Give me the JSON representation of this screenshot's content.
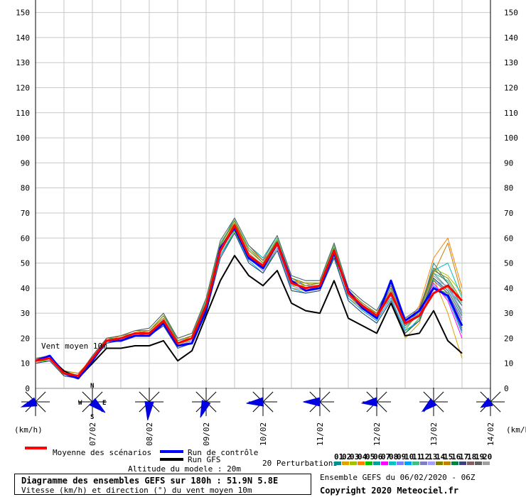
{
  "chart_data": {
    "type": "line",
    "title": "Diagramme des ensembles GEFS sur 180h : 51.9N 5.8E",
    "subtitle": "Vitesse (km/h) et direction (°) du vent moyen 10m",
    "series_label": "Vent moyen 10m",
    "ylabel_left": "(km/h)",
    "ylabel_right": "(km/h)",
    "ylim": [
      0,
      155
    ],
    "yticks": [
      0,
      10,
      20,
      30,
      40,
      50,
      60,
      70,
      80,
      90,
      100,
      110,
      120,
      130,
      140,
      150
    ],
    "xlim": [
      0,
      180
    ],
    "xticks": [
      {
        "t": 24,
        "label": "07/02"
      },
      {
        "t": 48,
        "label": "08/02"
      },
      {
        "t": 72,
        "label": "09/02"
      },
      {
        "t": 96,
        "label": "10/02"
      },
      {
        "t": 120,
        "label": "11/02"
      },
      {
        "t": 144,
        "label": "12/02"
      },
      {
        "t": 168,
        "label": "13/02"
      },
      {
        "t": 192,
        "label": "14/02"
      }
    ],
    "x": [
      0,
      6,
      12,
      18,
      24,
      30,
      36,
      42,
      48,
      54,
      60,
      66,
      72,
      78,
      84,
      90,
      96,
      102,
      108,
      114,
      120,
      126,
      132,
      138,
      144,
      150,
      156,
      162,
      168,
      174,
      180
    ],
    "series": [
      {
        "name": "Moyenne des scénarios",
        "color": "#ff0000",
        "width": 3,
        "values": [
          11,
          12,
          6,
          5,
          12,
          19,
          20,
          22,
          22,
          27,
          18,
          20,
          33,
          55,
          65,
          53,
          49,
          58,
          42,
          40,
          41,
          55,
          38,
          33,
          29,
          38,
          26,
          29,
          38,
          41,
          35
        ]
      },
      {
        "name": "Run de contrôle",
        "color": "#0000ff",
        "width": 3,
        "values": [
          11,
          13,
          6,
          4,
          11,
          19,
          19,
          21,
          21,
          26,
          17,
          18,
          31,
          56,
          64,
          52,
          48,
          58,
          43,
          39,
          40,
          54,
          39,
          32,
          28,
          43,
          27,
          31,
          40,
          37,
          25
        ]
      },
      {
        "name": "Run GFS",
        "color": "#000000",
        "width": 2,
        "values": [
          11,
          12,
          7,
          4,
          10,
          16,
          16,
          17,
          17,
          19,
          11,
          15,
          29,
          43,
          53,
          45,
          41,
          47,
          34,
          31,
          30,
          43,
          28,
          25,
          22,
          34,
          21,
          22,
          31,
          19,
          14
        ]
      }
    ],
    "perturbations_label": "20 Perturbations",
    "perturbation_ids": [
      "01",
      "02",
      "03",
      "04",
      "05",
      "06",
      "07",
      "08",
      "09",
      "10",
      "11",
      "12",
      "13",
      "14",
      "15",
      "16",
      "17",
      "18",
      "19",
      "20"
    ],
    "perturbation_colors": [
      "#009090",
      "#e0a000",
      "#a0c000",
      "#ff8000",
      "#00c000",
      "#00a0a0",
      "#ff00ff",
      "#00c0c0",
      "#8080ff",
      "#00a0ff",
      "#40c080",
      "#8080c0",
      "#a0a0ff",
      "#808000",
      "#c08000",
      "#008040",
      "#404080",
      "#806060",
      "#606060",
      "#a0a0a0"
    ],
    "perturbations": [
      [
        11,
        12,
        6,
        5,
        12,
        20,
        20,
        22,
        23,
        28,
        19,
        21,
        35,
        57,
        67,
        55,
        50,
        59,
        44,
        41,
        42,
        56,
        39,
        34,
        30,
        40,
        27,
        30,
        50,
        42,
        30
      ],
      [
        11,
        13,
        5,
        4,
        12,
        19,
        21,
        23,
        22,
        26,
        17,
        20,
        32,
        54,
        64,
        52,
        47,
        57,
        40,
        39,
        41,
        52,
        36,
        32,
        28,
        37,
        20,
        26,
        44,
        30,
        12
      ],
      [
        12,
        12,
        7,
        6,
        11,
        19,
        20,
        21,
        22,
        27,
        18,
        19,
        34,
        56,
        65,
        54,
        48,
        60,
        41,
        41,
        42,
        57,
        37,
        33,
        29,
        36,
        23,
        31,
        48,
        45,
        38
      ],
      [
        10,
        12,
        6,
        5,
        12,
        20,
        19,
        22,
        23,
        29,
        20,
        22,
        36,
        58,
        66,
        56,
        51,
        58,
        43,
        42,
        40,
        54,
        38,
        31,
        27,
        38,
        25,
        33,
        52,
        60,
        40
      ],
      [
        11,
        11,
        5,
        4,
        11,
        18,
        20,
        21,
        21,
        26,
        16,
        18,
        30,
        53,
        63,
        50,
        46,
        56,
        39,
        38,
        39,
        53,
        35,
        30,
        26,
        35,
        22,
        28,
        40,
        38,
        24
      ],
      [
        11,
        12,
        6,
        5,
        13,
        20,
        21,
        23,
        24,
        30,
        19,
        21,
        34,
        57,
        68,
        57,
        52,
        61,
        45,
        43,
        43,
        58,
        40,
        35,
        31,
        42,
        28,
        32,
        46,
        40,
        33
      ],
      [
        12,
        13,
        6,
        4,
        12,
        19,
        20,
        22,
        22,
        27,
        18,
        20,
        33,
        55,
        65,
        53,
        49,
        57,
        42,
        40,
        41,
        55,
        38,
        33,
        29,
        39,
        26,
        29,
        42,
        35,
        20
      ],
      [
        11,
        12,
        7,
        5,
        12,
        20,
        21,
        22,
        23,
        28,
        19,
        21,
        33,
        56,
        66,
        54,
        49,
        58,
        43,
        41,
        40,
        55,
        37,
        32,
        30,
        38,
        24,
        30,
        47,
        50,
        36
      ],
      [
        11,
        12,
        6,
        4,
        11,
        19,
        19,
        21,
        22,
        26,
        17,
        19,
        31,
        54,
        64,
        52,
        47,
        56,
        41,
        39,
        41,
        54,
        37,
        32,
        28,
        37,
        25,
        29,
        44,
        38,
        28
      ],
      [
        10,
        11,
        5,
        4,
        11,
        18,
        20,
        21,
        21,
        25,
        16,
        18,
        30,
        53,
        62,
        51,
        46,
        55,
        40,
        38,
        39,
        52,
        36,
        31,
        27,
        36,
        23,
        27,
        41,
        36,
        22
      ],
      [
        12,
        13,
        7,
        5,
        12,
        20,
        21,
        23,
        23,
        29,
        20,
        22,
        35,
        58,
        67,
        56,
        50,
        60,
        44,
        42,
        42,
        57,
        39,
        34,
        30,
        40,
        27,
        31,
        46,
        43,
        34
      ],
      [
        11,
        12,
        6,
        5,
        12,
        19,
        20,
        22,
        22,
        27,
        18,
        20,
        32,
        55,
        65,
        53,
        48,
        58,
        42,
        40,
        41,
        55,
        38,
        33,
        29,
        39,
        26,
        30,
        45,
        40,
        30
      ],
      [
        11,
        12,
        6,
        4,
        12,
        19,
        20,
        22,
        23,
        28,
        19,
        20,
        33,
        56,
        66,
        54,
        49,
        59,
        43,
        41,
        41,
        56,
        38,
        33,
        29,
        38,
        25,
        30,
        43,
        41,
        31
      ],
      [
        11,
        13,
        6,
        5,
        13,
        20,
        21,
        23,
        23,
        29,
        19,
        21,
        34,
        57,
        67,
        55,
        50,
        59,
        44,
        42,
        42,
        56,
        39,
        34,
        30,
        40,
        27,
        31,
        47,
        44,
        35
      ],
      [
        12,
        12,
        7,
        6,
        12,
        20,
        21,
        22,
        23,
        28,
        18,
        21,
        34,
        56,
        66,
        55,
        50,
        58,
        43,
        41,
        42,
        55,
        38,
        33,
        30,
        39,
        26,
        30,
        46,
        58,
        37
      ],
      [
        11,
        12,
        6,
        5,
        12,
        19,
        20,
        22,
        22,
        27,
        18,
        20,
        33,
        55,
        65,
        53,
        49,
        58,
        42,
        40,
        41,
        55,
        38,
        33,
        29,
        38,
        26,
        29,
        44,
        39,
        29
      ],
      [
        10,
        11,
        5,
        4,
        11,
        18,
        19,
        21,
        21,
        25,
        16,
        18,
        30,
        52,
        62,
        50,
        46,
        55,
        39,
        38,
        39,
        52,
        35,
        30,
        26,
        35,
        22,
        27,
        40,
        37,
        23
      ],
      [
        11,
        12,
        6,
        5,
        12,
        19,
        20,
        22,
        22,
        27,
        18,
        20,
        32,
        55,
        64,
        53,
        48,
        57,
        42,
        40,
        40,
        54,
        37,
        32,
        28,
        38,
        25,
        29,
        43,
        38,
        27
      ],
      [
        12,
        13,
        7,
        5,
        13,
        20,
        21,
        23,
        24,
        30,
        20,
        22,
        36,
        59,
        68,
        57,
        51,
        61,
        45,
        43,
        43,
        58,
        40,
        35,
        31,
        41,
        28,
        32,
        48,
        42,
        33
      ],
      [
        11,
        12,
        6,
        4,
        12,
        19,
        20,
        22,
        22,
        27,
        18,
        20,
        33,
        55,
        65,
        54,
        49,
        58,
        42,
        40,
        41,
        55,
        38,
        33,
        29,
        39,
        26,
        30,
        45,
        40,
        31
      ]
    ],
    "wind_label_left": "(km/h)",
    "wind_label_right": "(km/h)",
    "compass_letters": {
      "n": "N",
      "s": "S",
      "e": "E",
      "w": "W"
    },
    "wind_roses": [
      {
        "t": 0,
        "dir": 250,
        "len": 0.8
      },
      {
        "t": 24,
        "dir": 130,
        "len": 0.9
      },
      {
        "t": 48,
        "dir": 185,
        "len": 1.0
      },
      {
        "t": 72,
        "dir": 200,
        "len": 0.9
      },
      {
        "t": 96,
        "dir": 265,
        "len": 0.9
      },
      {
        "t": 120,
        "dir": 270,
        "len": 0.9
      },
      {
        "t": 144,
        "dir": 265,
        "len": 0.8
      },
      {
        "t": 168,
        "dir": 230,
        "len": 0.8
      },
      {
        "t": 192,
        "dir": 240,
        "len": 0.6
      }
    ]
  },
  "legend": {
    "mean": "Moyenne des scénarios",
    "control": "Run de contrôle",
    "gfs": "Run GFS",
    "mean_color": "#ff0000",
    "control_color": "#0000ff",
    "gfs_color": "#000000"
  },
  "info": {
    "altitude": "Altitude du modele : 20m",
    "title": "Diagramme des ensembles GEFS sur 180h : 51.9N 5.8E",
    "subtitle": "Vitesse (km/h) et direction (°) du vent moyen 10m",
    "ensemble_run": "Ensemble GEFS du 06/02/2020 - 06Z",
    "copyright": "Copyright 2020 Meteociel.fr"
  }
}
